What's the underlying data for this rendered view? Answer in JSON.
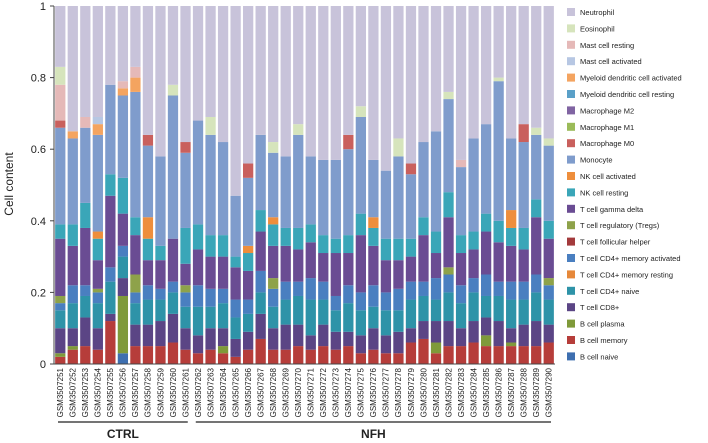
{
  "chart_data": {
    "type": "bar",
    "stacked": true,
    "ylabel": "Cell content",
    "ylim": [
      0,
      1
    ],
    "yticks": [
      "0",
      "0.2",
      "0.4",
      "0.6",
      "0.8",
      "1"
    ],
    "grid": false,
    "legend_position": "right",
    "groups": [
      {
        "label": "CTRL",
        "start": 0,
        "end": 10
      },
      {
        "label": "NFH",
        "start": 11,
        "end": 39
      }
    ],
    "categories": [
      "GSM3507251",
      "GSM3507252",
      "GSM3507253",
      "GSM3507254",
      "GSM3507255",
      "GSM3507256",
      "GSM3507257",
      "GSM3507258",
      "GSM3507259",
      "GSM3507260",
      "GSM3507261",
      "GSM3507262",
      "GSM3507263",
      "GSM3507264",
      "GSM3507265",
      "GSM3507266",
      "GSM3507267",
      "GSM3507268",
      "GSM3507269",
      "GSM3507270",
      "GSM3507271",
      "GSM3507272",
      "GSM3507273",
      "GSM3507274",
      "GSM3507275",
      "GSM3507276",
      "GSM3507277",
      "GSM3507278",
      "GSM3507279",
      "GSM3507280",
      "GSM3507281",
      "GSM3507282",
      "GSM3507283",
      "GSM3507284",
      "GSM3507285",
      "GSM3507286",
      "GSM3507287",
      "GSM3507288",
      "GSM3507289",
      "GSM3507290"
    ],
    "series": [
      {
        "name": "B cell naive",
        "color": "#3e6fb0",
        "values": [
          0.0,
          0.0,
          0.0,
          0.0,
          0.0,
          0.03,
          0.0,
          0.0,
          0.0,
          0.0,
          0.0,
          0.0,
          0.0,
          0.0,
          0.0,
          0.0,
          0.0,
          0.0,
          0.0,
          0.0,
          0.0,
          0.0,
          0.0,
          0.0,
          0.0,
          0.0,
          0.0,
          0.0,
          0.0,
          0.0,
          0.0,
          0.0,
          0.0,
          0.0,
          0.0,
          0.0,
          0.0,
          0.0,
          0.0,
          0.0
        ]
      },
      {
        "name": "B cell memory",
        "color": "#b63d3a",
        "values": [
          0.02,
          0.04,
          0.05,
          0.04,
          0.12,
          0.0,
          0.05,
          0.05,
          0.05,
          0.06,
          0.04,
          0.03,
          0.04,
          0.03,
          0.02,
          0.04,
          0.07,
          0.04,
          0.04,
          0.05,
          0.04,
          0.05,
          0.04,
          0.05,
          0.03,
          0.04,
          0.03,
          0.03,
          0.06,
          0.07,
          0.03,
          0.05,
          0.05,
          0.06,
          0.05,
          0.05,
          0.05,
          0.05,
          0.05,
          0.06
        ]
      },
      {
        "name": "B cell plasma",
        "color": "#7f9a3a",
        "values": [
          0.01,
          0.01,
          0.0,
          0.0,
          0.0,
          0.16,
          0.0,
          0.0,
          0.0,
          0.0,
          0.0,
          0.0,
          0.0,
          0.02,
          0.0,
          0.0,
          0.0,
          0.0,
          0.0,
          0.0,
          0.0,
          0.0,
          0.0,
          0.0,
          0.0,
          0.0,
          0.0,
          0.0,
          0.0,
          0.0,
          0.03,
          0.0,
          0.0,
          0.0,
          0.03,
          0.0,
          0.01,
          0.0,
          0.0,
          0.0
        ]
      },
      {
        "name": "T cell CD8+",
        "color": "#5b4585",
        "values": [
          0.07,
          0.05,
          0.08,
          0.06,
          0.02,
          0.05,
          0.06,
          0.06,
          0.07,
          0.08,
          0.06,
          0.05,
          0.06,
          0.05,
          0.05,
          0.05,
          0.07,
          0.06,
          0.07,
          0.06,
          0.04,
          0.06,
          0.05,
          0.04,
          0.05,
          0.06,
          0.05,
          0.06,
          0.04,
          0.05,
          0.06,
          0.07,
          0.05,
          0.06,
          0.05,
          0.07,
          0.04,
          0.06,
          0.07,
          0.05
        ]
      },
      {
        "name": "T cell CD4+ naive",
        "color": "#2e93a8",
        "values": [
          0.05,
          0.07,
          0.06,
          0.07,
          0.09,
          0.06,
          0.06,
          0.07,
          0.06,
          0.06,
          0.06,
          0.08,
          0.06,
          0.07,
          0.06,
          0.05,
          0.06,
          0.06,
          0.07,
          0.08,
          0.1,
          0.07,
          0.06,
          0.08,
          0.07,
          0.06,
          0.07,
          0.06,
          0.08,
          0.07,
          0.06,
          0.08,
          0.07,
          0.08,
          0.06,
          0.07,
          0.08,
          0.07,
          0.08,
          0.07
        ]
      },
      {
        "name": "T cell CD4+ memory resting",
        "color": "#e6883a",
        "values": [
          0.0,
          0.0,
          0.0,
          0.0,
          0.0,
          0.0,
          0.0,
          0.0,
          0.0,
          0.0,
          0.0,
          0.0,
          0.0,
          0.0,
          0.0,
          0.0,
          0.0,
          0.0,
          0.0,
          0.0,
          0.0,
          0.0,
          0.0,
          0.0,
          0.0,
          0.0,
          0.0,
          0.0,
          0.0,
          0.0,
          0.0,
          0.0,
          0.0,
          0.0,
          0.0,
          0.0,
          0.0,
          0.0,
          0.0,
          0.0
        ]
      },
      {
        "name": "T cell CD4+ memory activated",
        "color": "#4a7fc0",
        "values": [
          0.02,
          0.05,
          0.03,
          0.03,
          0.04,
          0.03,
          0.03,
          0.04,
          0.03,
          0.03,
          0.04,
          0.06,
          0.05,
          0.04,
          0.05,
          0.04,
          0.06,
          0.05,
          0.05,
          0.04,
          0.06,
          0.05,
          0.04,
          0.05,
          0.05,
          0.06,
          0.05,
          0.06,
          0.05,
          0.04,
          0.06,
          0.05,
          0.05,
          0.04,
          0.06,
          0.04,
          0.05,
          0.05,
          0.05,
          0.04
        ]
      },
      {
        "name": "T cell follicular helper",
        "color": "#a33a3c",
        "values": [
          0.0,
          0.0,
          0.0,
          0.0,
          0.0,
          0.0,
          0.0,
          0.0,
          0.0,
          0.0,
          0.0,
          0.0,
          0.0,
          0.0,
          0.0,
          0.0,
          0.0,
          0.0,
          0.0,
          0.0,
          0.0,
          0.0,
          0.0,
          0.0,
          0.0,
          0.0,
          0.0,
          0.0,
          0.0,
          0.0,
          0.0,
          0.0,
          0.0,
          0.0,
          0.0,
          0.0,
          0.0,
          0.0,
          0.0,
          0.0
        ]
      },
      {
        "name": "T cell regulatory (Tregs)",
        "color": "#8ea24a",
        "values": [
          0.02,
          0.0,
          0.0,
          0.01,
          0.0,
          0.0,
          0.05,
          0.0,
          0.0,
          0.0,
          0.02,
          0.0,
          0.0,
          0.0,
          0.0,
          0.0,
          0.0,
          0.03,
          0.0,
          0.0,
          0.0,
          0.0,
          0.0,
          0.0,
          0.0,
          0.0,
          0.0,
          0.0,
          0.0,
          0.0,
          0.0,
          0.02,
          0.0,
          0.0,
          0.0,
          0.0,
          0.0,
          0.0,
          0.0,
          0.02
        ]
      },
      {
        "name": "T cell gamma delta",
        "color": "#6a4c93",
        "values": [
          0.16,
          0.11,
          0.16,
          0.08,
          0.2,
          0.09,
          0.11,
          0.07,
          0.08,
          0.12,
          0.06,
          0.1,
          0.09,
          0.09,
          0.09,
          0.08,
          0.11,
          0.09,
          0.1,
          0.09,
          0.1,
          0.08,
          0.12,
          0.09,
          0.16,
          0.11,
          0.09,
          0.08,
          0.07,
          0.13,
          0.07,
          0.14,
          0.09,
          0.08,
          0.12,
          0.11,
          0.1,
          0.09,
          0.16,
          0.11
        ]
      },
      {
        "name": "NK cell resting",
        "color": "#3aa6b8",
        "values": [
          0.04,
          0.06,
          0.07,
          0.06,
          0.06,
          0.1,
          0.05,
          0.06,
          0.04,
          0.0,
          0.1,
          0.07,
          0.06,
          0.06,
          0.03,
          0.05,
          0.06,
          0.06,
          0.05,
          0.06,
          0.05,
          0.05,
          0.04,
          0.05,
          0.06,
          0.05,
          0.06,
          0.06,
          0.05,
          0.05,
          0.06,
          0.07,
          0.05,
          0.05,
          0.05,
          0.06,
          0.05,
          0.06,
          0.05,
          0.05
        ]
      },
      {
        "name": "NK cell activated",
        "color": "#ee8e3c",
        "values": [
          0.0,
          0.0,
          0.0,
          0.02,
          0.0,
          0.0,
          0.0,
          0.06,
          0.0,
          0.0,
          0.0,
          0.0,
          0.0,
          0.0,
          0.0,
          0.02,
          0.0,
          0.02,
          0.0,
          0.0,
          0.0,
          0.0,
          0.0,
          0.0,
          0.0,
          0.03,
          0.0,
          0.0,
          0.0,
          0.0,
          0.0,
          0.0,
          0.0,
          0.0,
          0.0,
          0.0,
          0.05,
          0.0,
          0.0,
          0.0
        ]
      },
      {
        "name": "Monocyte",
        "color": "#7f9ccc",
        "values": [
          0.27,
          0.24,
          0.21,
          0.27,
          0.25,
          0.23,
          0.35,
          0.2,
          0.25,
          0.4,
          0.21,
          0.29,
          0.28,
          0.26,
          0.17,
          0.19,
          0.21,
          0.18,
          0.2,
          0.26,
          0.19,
          0.21,
          0.22,
          0.24,
          0.27,
          0.16,
          0.19,
          0.23,
          0.18,
          0.21,
          0.28,
          0.26,
          0.19,
          0.26,
          0.25,
          0.39,
          0.2,
          0.24,
          0.18,
          0.21
        ]
      },
      {
        "name": "Macrophage M0",
        "color": "#c9605d",
        "values": [
          0.02,
          0.0,
          0.0,
          0.0,
          0.0,
          0.0,
          0.0,
          0.03,
          0.0,
          0.0,
          0.03,
          0.0,
          0.0,
          0.0,
          0.0,
          0.04,
          0.0,
          0.0,
          0.0,
          0.0,
          0.0,
          0.0,
          0.0,
          0.04,
          0.0,
          0.0,
          0.0,
          0.0,
          0.03,
          0.0,
          0.0,
          0.0,
          0.0,
          0.0,
          0.0,
          0.0,
          0.0,
          0.05,
          0.0,
          0.0
        ]
      },
      {
        "name": "Macrophage M1",
        "color": "#9bbb59",
        "values": [
          0.0,
          0.0,
          0.0,
          0.0,
          0.0,
          0.0,
          0.0,
          0.0,
          0.0,
          0.0,
          0.0,
          0.0,
          0.0,
          0.0,
          0.0,
          0.0,
          0.0,
          0.0,
          0.0,
          0.0,
          0.0,
          0.0,
          0.0,
          0.0,
          0.0,
          0.0,
          0.0,
          0.0,
          0.0,
          0.0,
          0.0,
          0.0,
          0.0,
          0.0,
          0.0,
          0.0,
          0.0,
          0.0,
          0.0,
          0.0
        ]
      },
      {
        "name": "Macrophage M2",
        "color": "#8064a2",
        "values": [
          0.0,
          0.0,
          0.0,
          0.0,
          0.0,
          0.0,
          0.0,
          0.0,
          0.0,
          0.0,
          0.0,
          0.0,
          0.0,
          0.0,
          0.0,
          0.0,
          0.0,
          0.0,
          0.0,
          0.0,
          0.0,
          0.0,
          0.0,
          0.0,
          0.0,
          0.0,
          0.0,
          0.0,
          0.0,
          0.0,
          0.0,
          0.0,
          0.0,
          0.0,
          0.0,
          0.0,
          0.0,
          0.0,
          0.0,
          0.0
        ]
      },
      {
        "name": "Myeloid dendritic cell resting",
        "color": "#5aa0c8",
        "values": [
          0.0,
          0.0,
          0.0,
          0.0,
          0.0,
          0.0,
          0.0,
          0.0,
          0.0,
          0.0,
          0.0,
          0.0,
          0.0,
          0.0,
          0.0,
          0.0,
          0.0,
          0.0,
          0.0,
          0.0,
          0.0,
          0.0,
          0.0,
          0.0,
          0.0,
          0.0,
          0.0,
          0.0,
          0.0,
          0.0,
          0.0,
          0.0,
          0.0,
          0.0,
          0.0,
          0.0,
          0.0,
          0.0,
          0.0,
          0.0
        ]
      },
      {
        "name": "Myeloid dendritic cell activated",
        "color": "#f4a460",
        "values": [
          0.0,
          0.02,
          0.0,
          0.03,
          0.0,
          0.02,
          0.04,
          0.0,
          0.0,
          0.0,
          0.0,
          0.0,
          0.0,
          0.0,
          0.0,
          0.0,
          0.0,
          0.0,
          0.0,
          0.0,
          0.0,
          0.0,
          0.0,
          0.0,
          0.0,
          0.0,
          0.0,
          0.0,
          0.0,
          0.0,
          0.0,
          0.0,
          0.0,
          0.0,
          0.0,
          0.0,
          0.0,
          0.0,
          0.0,
          0.0
        ]
      },
      {
        "name": "Mast cell activated",
        "color": "#b7c7e3",
        "values": [
          0.0,
          0.0,
          0.0,
          0.02,
          0.0,
          0.0,
          0.0,
          0.0,
          0.0,
          0.0,
          0.0,
          0.0,
          0.0,
          0.0,
          0.0,
          0.0,
          0.0,
          0.0,
          0.0,
          0.0,
          0.0,
          0.0,
          0.0,
          0.0,
          0.0,
          0.0,
          0.0,
          0.0,
          0.0,
          0.0,
          0.0,
          0.0,
          0.0,
          0.0,
          0.0,
          0.0,
          0.0,
          0.0,
          0.0,
          0.0
        ]
      },
      {
        "name": "Mast cell resting",
        "color": "#e5b9b8",
        "values": [
          0.1,
          0.0,
          0.03,
          0.0,
          0.0,
          0.02,
          0.03,
          0.0,
          0.0,
          0.0,
          0.0,
          0.0,
          0.0,
          0.0,
          0.0,
          0.0,
          0.0,
          0.0,
          0.0,
          0.0,
          0.0,
          0.0,
          0.0,
          0.0,
          0.0,
          0.0,
          0.0,
          0.0,
          0.0,
          0.0,
          0.0,
          0.0,
          0.02,
          0.0,
          0.0,
          0.0,
          0.0,
          0.0,
          0.0,
          0.0
        ]
      },
      {
        "name": "Eosinophil",
        "color": "#d6e4bc",
        "values": [
          0.05,
          0.0,
          0.0,
          0.0,
          0.0,
          0.0,
          0.0,
          0.0,
          0.0,
          0.03,
          0.0,
          0.0,
          0.05,
          0.0,
          0.0,
          0.0,
          0.0,
          0.03,
          0.0,
          0.03,
          0.0,
          0.0,
          0.0,
          0.0,
          0.03,
          0.0,
          0.0,
          0.05,
          0.0,
          0.0,
          0.0,
          0.02,
          0.0,
          0.0,
          0.0,
          0.01,
          0.0,
          0.0,
          0.02,
          0.02
        ]
      },
      {
        "name": "Neutrophil",
        "color": "#c8c3da",
        "values": [
          0.17,
          0.35,
          0.31,
          0.29,
          0.22,
          0.21,
          0.17,
          0.36,
          0.42,
          0.17,
          0.38,
          0.32,
          0.29,
          0.38,
          0.53,
          0.48,
          0.36,
          0.38,
          0.42,
          0.33,
          0.42,
          0.43,
          0.45,
          0.4,
          0.28,
          0.43,
          0.46,
          0.37,
          0.44,
          0.38,
          0.41,
          0.24,
          0.48,
          0.37,
          0.33,
          0.25,
          0.37,
          0.28,
          0.37,
          0.37
        ]
      }
    ]
  }
}
